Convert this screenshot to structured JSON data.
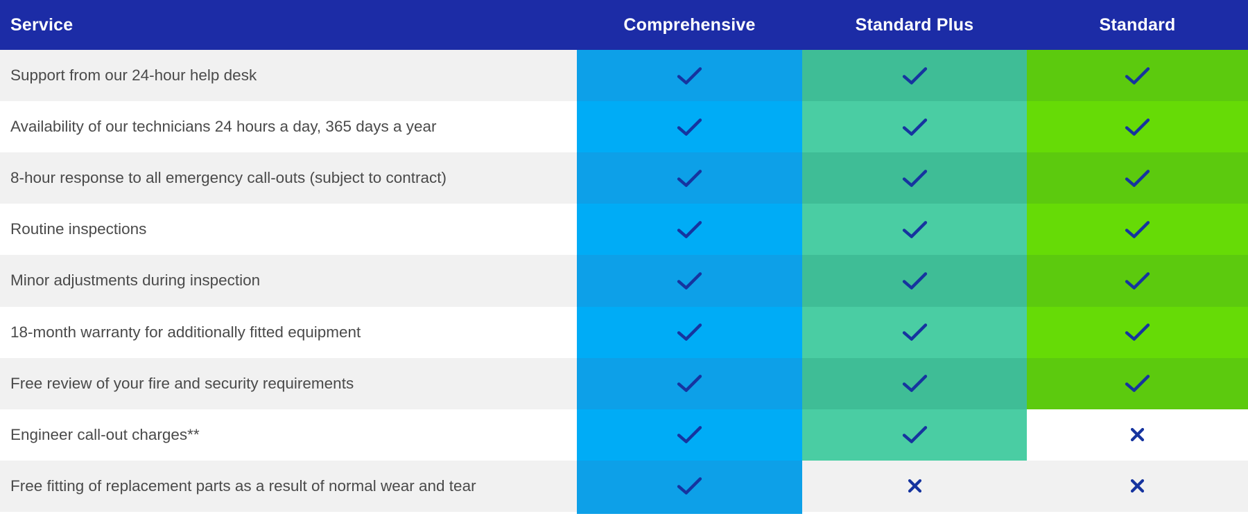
{
  "table": {
    "header": {
      "service_label": "Service",
      "bg": "#1c2ca6",
      "text_color": "#ffffff"
    },
    "columns": [
      {
        "label": "Comprehensive",
        "shade_odd": "#0da0e8",
        "shade_even": "#00acf6"
      },
      {
        "label": "Standard Plus",
        "shade_odd": "#3fbd96",
        "shade_even": "#4acda3"
      },
      {
        "label": "Standard",
        "shade_odd": "#5cca0e",
        "shade_even": "#66db06"
      }
    ],
    "row_shades": {
      "odd": "#f1f1f1",
      "even": "#ffffff"
    },
    "icon_color": "#16349f",
    "service_text_color": "#4a4a4a",
    "icons": {
      "included": "check-icon",
      "excluded": "cross-icon"
    },
    "rows": [
      {
        "service": "Support from our 24-hour help desk",
        "values": [
          "check",
          "check",
          "check"
        ]
      },
      {
        "service": "Availability of our technicians 24 hours a day, 365 days a year",
        "values": [
          "check",
          "check",
          "check"
        ]
      },
      {
        "service": "8-hour response to all emergency call-outs (subject to contract)",
        "values": [
          "check",
          "check",
          "check"
        ]
      },
      {
        "service": "Routine inspections",
        "values": [
          "check",
          "check",
          "check"
        ]
      },
      {
        "service": "Minor adjustments during inspection",
        "values": [
          "check",
          "check",
          "check"
        ]
      },
      {
        "service": "18-month warranty for additionally fitted equipment",
        "values": [
          "check",
          "check",
          "check"
        ]
      },
      {
        "service": "Free review of your fire and security requirements",
        "values": [
          "check",
          "check",
          "check"
        ]
      },
      {
        "service": "Engineer call-out charges**",
        "values": [
          "check",
          "check",
          "cross"
        ]
      },
      {
        "service": "Free fitting of replacement parts as a result of normal wear and tear",
        "values": [
          "check",
          "cross",
          "cross"
        ]
      }
    ]
  }
}
